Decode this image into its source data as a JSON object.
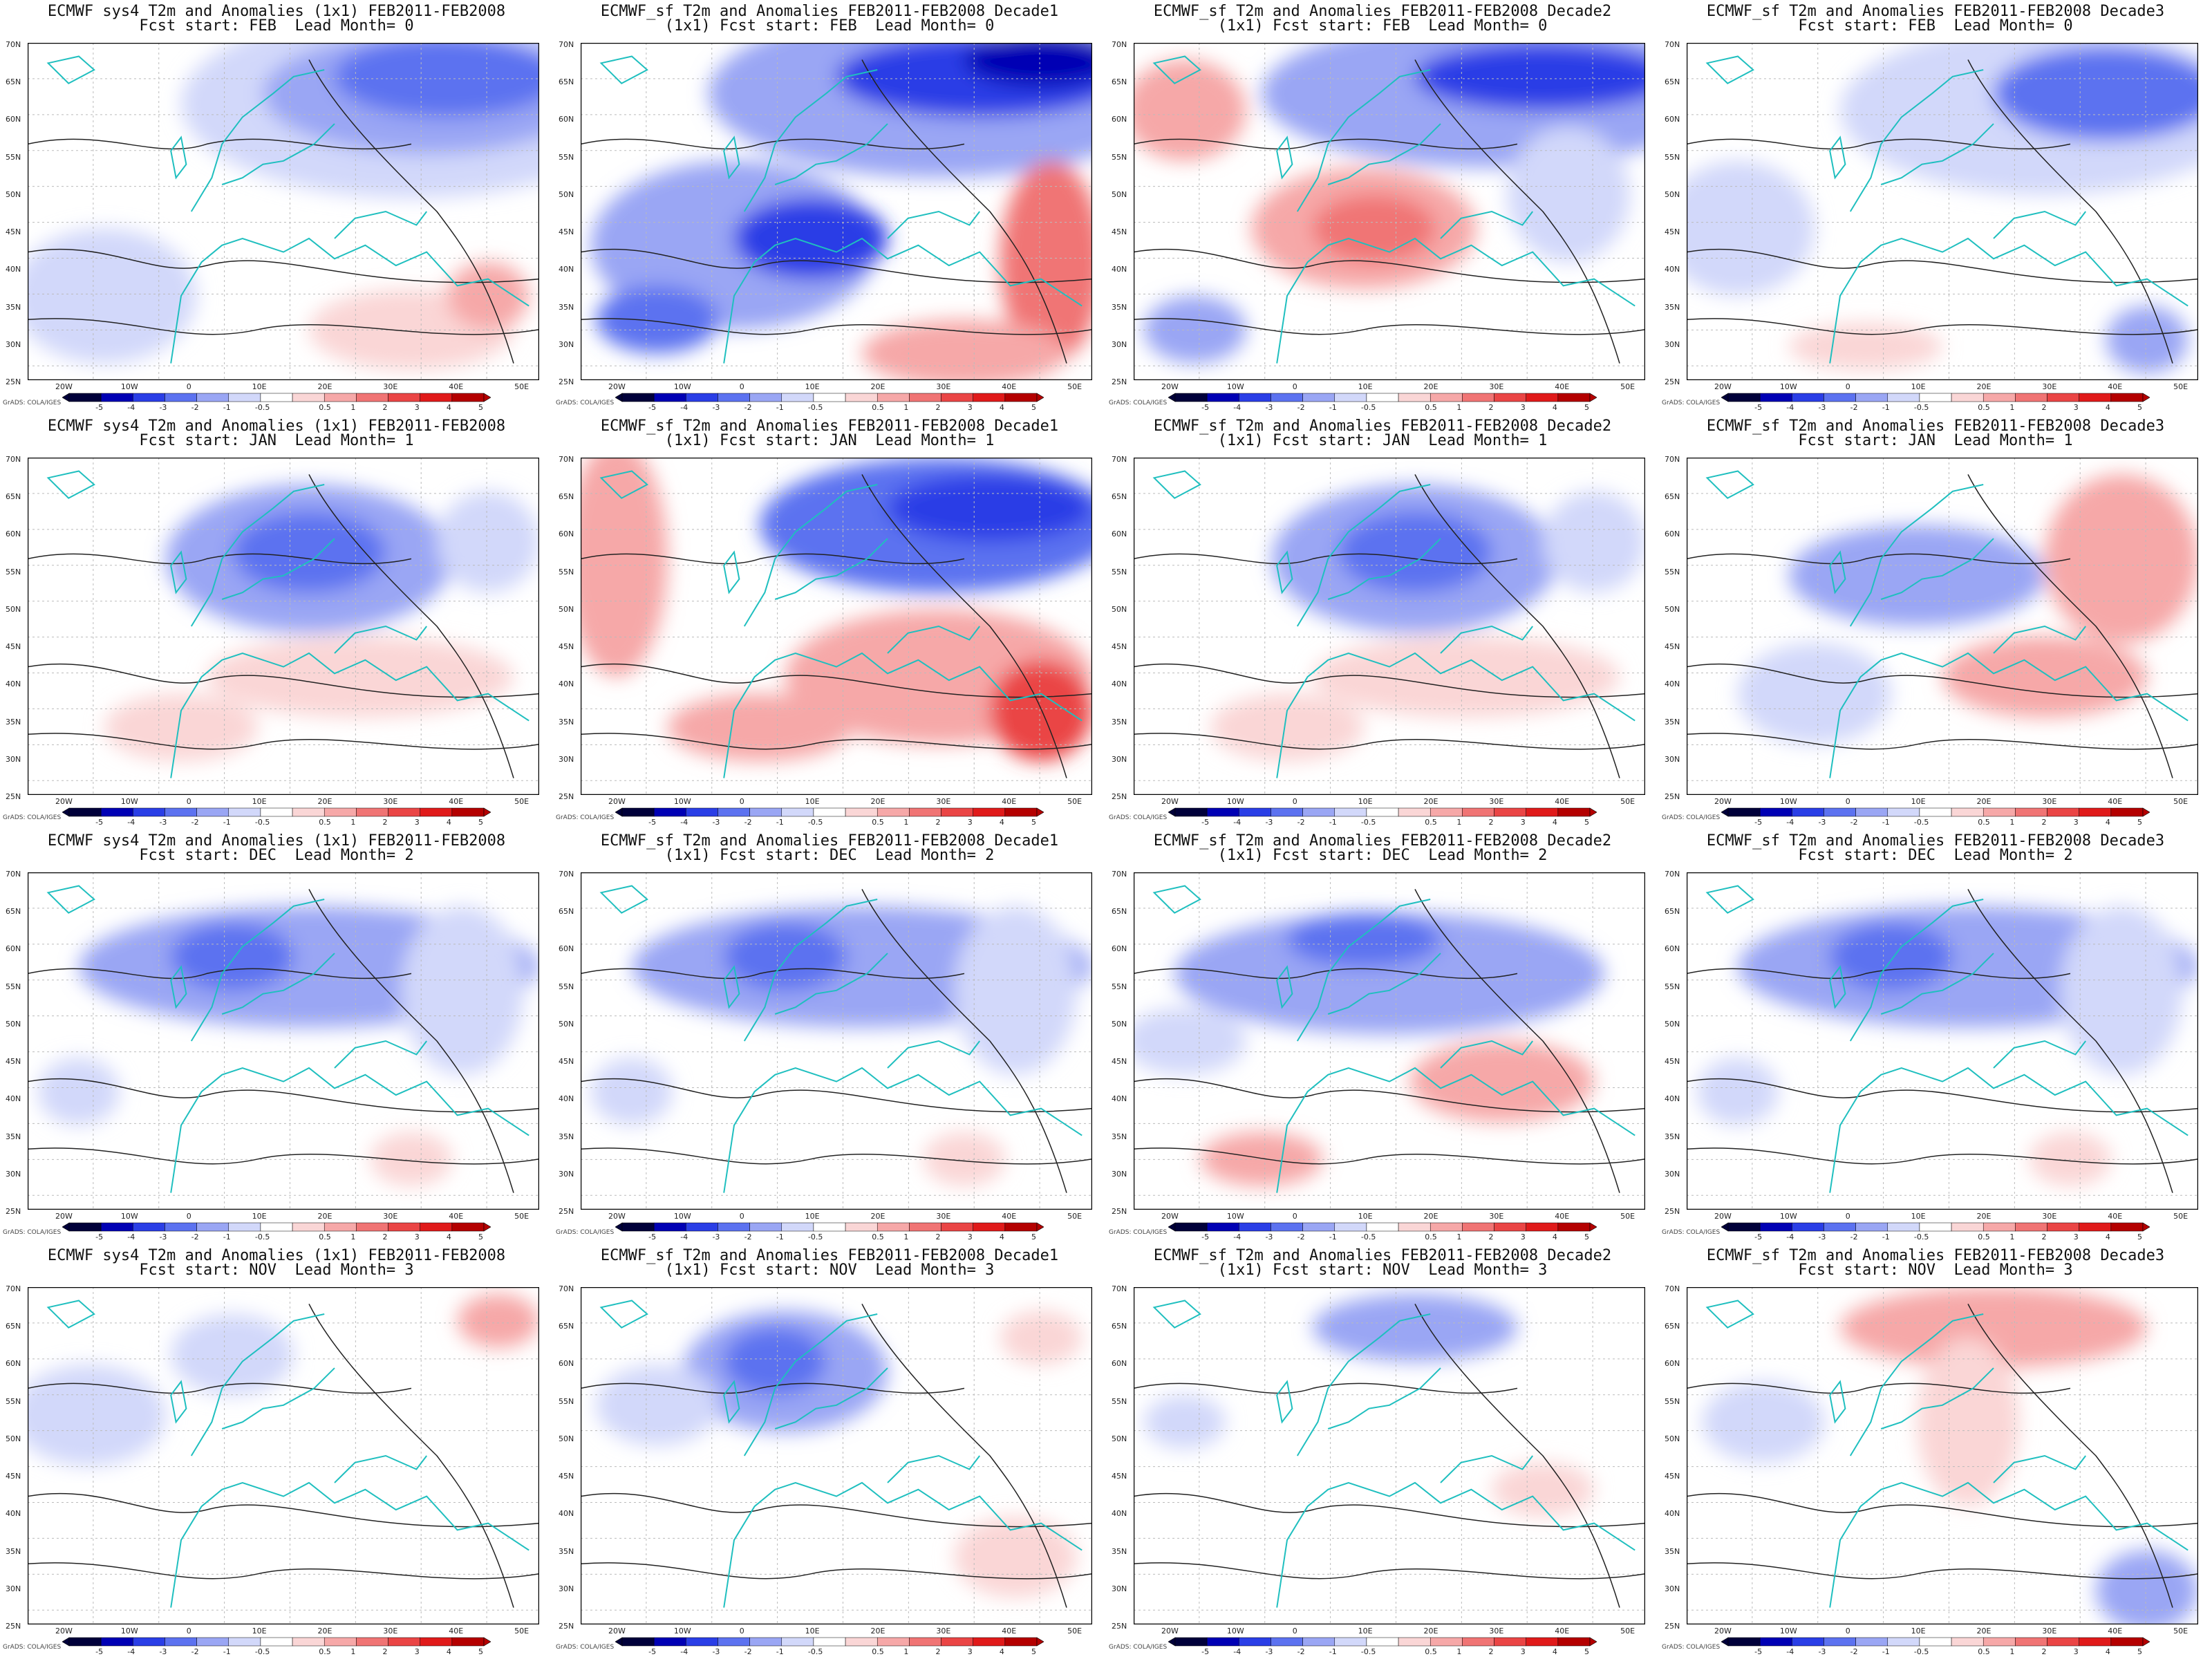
{
  "panels": [
    {
      "title1": "ECMWF sys4 T2m and Anomalies (1x1) FEB2011-FEB2008",
      "title2": "Fcst start: FEB  Lead Month= 0",
      "pattern": "cold_north"
    },
    {
      "title1": "ECMWF_sf T2m and Anomalies FEB2011-FEB2008 Decade1",
      "title2": "(1x1) Fcst start: FEB  Lead Month= 0",
      "pattern": "cold_dec1"
    },
    {
      "title1": "ECMWF_sf T2m and Anomalies FEB2011-FEB2008 Decade2",
      "title2": "(1x1) Fcst start: FEB  Lead Month= 0",
      "pattern": "cold_warm_center"
    },
    {
      "title1": "ECMWF_sf T2m and Anomalies FEB2011-FEB2008 Decade3",
      "title2": "Fcst start: FEB  Lead Month= 0",
      "pattern": "cold_ne"
    },
    {
      "title1": "ECMWF sys4 T2m and Anomalies (1x1) FEB2011-FEB2008",
      "title2": "Fcst start: JAN  Lead Month= 1",
      "pattern": "mild_cold"
    },
    {
      "title1": "ECMWF_sf T2m and Anomalies FEB2011-FEB2008 Decade1",
      "title2": "(1x1) Fcst start: JAN  Lead Month= 1",
      "pattern": "cold_warm_se"
    },
    {
      "title1": "ECMWF_sf T2m and Anomalies FEB2011-FEB2008 Decade2",
      "title2": "(1x1) Fcst start: JAN  Lead Month= 1",
      "pattern": "mild_cold"
    },
    {
      "title1": "ECMWF_sf T2m and Anomalies FEB2011-FEB2008 Decade3",
      "title2": "Fcst start: JAN  Lead Month= 1",
      "pattern": "weak_mix"
    },
    {
      "title1": "ECMWF sys4 T2m and Anomalies (1x1) FEB2011-FEB2008",
      "title2": "Fcst start: DEC  Lead Month= 2",
      "pattern": "light_cold_band"
    },
    {
      "title1": "ECMWF_sf T2m and Anomalies FEB2011-FEB2008 Decade1",
      "title2": "(1x1) Fcst start: DEC  Lead Month= 2",
      "pattern": "light_cold_band"
    },
    {
      "title1": "ECMWF_sf T2m and Anomalies FEB2011-FEB2008 Decade2",
      "title2": "(1x1) Fcst start: DEC  Lead Month= 2",
      "pattern": "cold_band_warm_s"
    },
    {
      "title1": "ECMWF_sf T2m and Anomalies FEB2011-FEB2008 Decade3",
      "title2": "Fcst start: DEC  Lead Month= 2",
      "pattern": "light_cold_band"
    },
    {
      "title1": "ECMWF sys4 T2m and Anomalies (1x1) FEB2011-FEB2008",
      "title2": "Fcst start: NOV  Lead Month= 3",
      "pattern": "faint_cold_w"
    },
    {
      "title1": "ECMWF_sf T2m and Anomalies FEB2011-FEB2008 Decade1",
      "title2": "(1x1) Fcst start: NOV  Lead Month= 3",
      "pattern": "cold_scand"
    },
    {
      "title1": "ECMWF_sf T2m and Anomalies FEB2011-FEB2008 Decade2",
      "title2": "(1x1) Fcst start: NOV  Lead Month= 3",
      "pattern": "faint_cold_n"
    },
    {
      "title1": "ECMWF_sf T2m and Anomalies FEB2011-FEB2008 Decade3",
      "title2": "Fcst start: NOV  Lead Month= 3",
      "pattern": "warm_n"
    }
  ],
  "lat_labels": [
    "70N",
    "65N",
    "60N",
    "55N",
    "50N",
    "45N",
    "40N",
    "35N",
    "30N",
    "25N"
  ],
  "lon_labels": [
    "20W",
    "10W",
    "0",
    "10E",
    "20E",
    "30E",
    "40E",
    "50E"
  ],
  "colorbar_labels": [
    "-5",
    "-4",
    "-3",
    "-2",
    "-1",
    "-0.5",
    "0.5",
    "1",
    "2",
    "3",
    "4",
    "5"
  ],
  "credit": "GrADS: COLA/IGES",
  "colors": {
    "neg": [
      "#00003a",
      "#0000b4",
      "#2a3ee6",
      "#5c72f0",
      "#9aa6f4",
      "#d2d8fa"
    ],
    "zero": "#ffffff",
    "pos": [
      "#fad6d6",
      "#f6a8a8",
      "#f07474",
      "#ea4545",
      "#e01a1a",
      "#b40000"
    ],
    "coast": "#1fbfbf",
    "contour": "#222222"
  }
}
